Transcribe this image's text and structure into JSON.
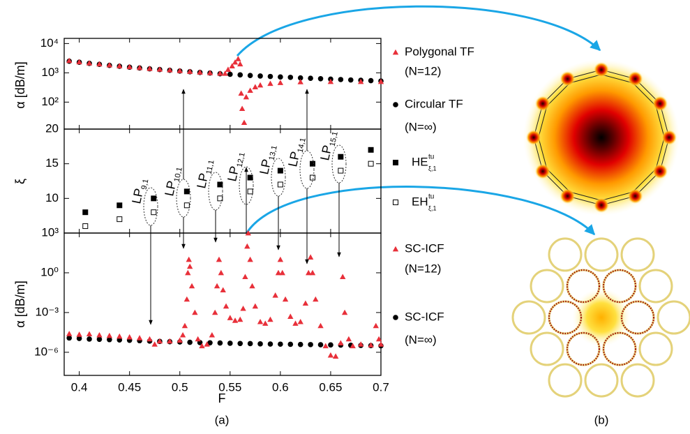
{
  "panel_labels": [
    "(a)",
    "(b)"
  ],
  "chart_data": [
    {
      "type": "scatter",
      "log_y": true,
      "y_label": "α [dB/m]",
      "xlim": [
        0.385,
        0.7
      ],
      "ylim": [
        12,
        15000
      ],
      "yticks": [
        {
          "value": 10000,
          "label": "10⁴"
        },
        {
          "value": 1000,
          "label": "10³"
        },
        {
          "value": 100,
          "label": "10²"
        }
      ],
      "series": [
        {
          "name": "Polygonal TF",
          "note": "(N=12)",
          "color": "#e8303a",
          "marker": "triangle",
          "x": [
            0.39,
            0.4,
            0.41,
            0.42,
            0.43,
            0.44,
            0.45,
            0.46,
            0.47,
            0.48,
            0.49,
            0.5,
            0.51,
            0.52,
            0.53,
            0.54,
            0.545,
            0.548,
            0.552,
            0.555,
            0.558,
            0.56,
            0.561,
            0.562,
            0.564,
            0.566,
            0.57,
            0.575,
            0.58,
            0.59,
            0.6,
            0.62,
            0.65,
            0.68,
            0.7
          ],
          "values": [
            2600,
            2350,
            2150,
            2000,
            1850,
            1720,
            1600,
            1500,
            1400,
            1320,
            1250,
            1180,
            1110,
            1050,
            1000,
            960,
            950,
            1300,
            1700,
            2300,
            3000,
            2000,
            200,
            60,
            20,
            150,
            250,
            330,
            380,
            430,
            460,
            490,
            500,
            500,
            500
          ]
        },
        {
          "name": "Circular TF",
          "note": "(N=∞)",
          "color": "#000000",
          "marker": "circle",
          "x": [
            0.39,
            0.4,
            0.41,
            0.42,
            0.43,
            0.44,
            0.45,
            0.46,
            0.47,
            0.48,
            0.49,
            0.5,
            0.51,
            0.52,
            0.53,
            0.54,
            0.55,
            0.56,
            0.57,
            0.58,
            0.59,
            0.6,
            0.61,
            0.62,
            0.63,
            0.64,
            0.65,
            0.66,
            0.67,
            0.68,
            0.69,
            0.7
          ],
          "values": [
            2500,
            2300,
            2100,
            1950,
            1800,
            1680,
            1560,
            1460,
            1370,
            1290,
            1220,
            1150,
            1090,
            1030,
            980,
            930,
            890,
            850,
            810,
            780,
            750,
            720,
            700,
            670,
            650,
            630,
            610,
            590,
            570,
            555,
            540,
            525
          ]
        }
      ]
    },
    {
      "type": "scatter",
      "log_y": false,
      "y_label": "ξ",
      "xlim": [
        0.385,
        0.7
      ],
      "ylim": [
        5,
        20
      ],
      "yticks": [
        20,
        15,
        10
      ],
      "series": [
        {
          "name": "HE",
          "name_sup": "tu",
          "name_sub": "ξ,1",
          "color": "#000000",
          "marker": "square",
          "x": [
            0.406,
            0.44,
            0.474,
            0.507,
            0.54,
            0.57,
            0.6,
            0.632,
            0.66,
            0.69
          ],
          "values": [
            8,
            9,
            10,
            11,
            12,
            13,
            14,
            15,
            16,
            17
          ]
        },
        {
          "name": "EH",
          "name_sup": "tu",
          "name_sub": "ξ,1",
          "color": "#000000",
          "marker": "square-open",
          "x": [
            0.406,
            0.44,
            0.474,
            0.507,
            0.54,
            0.57,
            0.6,
            0.632,
            0.66,
            0.69
          ],
          "values": [
            6,
            7,
            8,
            9,
            10,
            11,
            12,
            13,
            14,
            15
          ]
        }
      ],
      "annotations": [
        {
          "text": "LP",
          "sub": "9,1"
        },
        {
          "text": "LP",
          "sub": "10,1"
        },
        {
          "text": "LP",
          "sub": "11,1"
        },
        {
          "text": "LP",
          "sub": "12,1"
        },
        {
          "text": "LP",
          "sub": "13,1"
        },
        {
          "text": "LP",
          "sub": "14,1"
        },
        {
          "text": "LP",
          "sub": "15,1"
        }
      ]
    },
    {
      "type": "scatter",
      "log_y": true,
      "y_label": "α [dB/m]",
      "x_label": "F",
      "xlim": [
        0.385,
        0.7
      ],
      "xticks": [
        0.4,
        0.45,
        0.5,
        0.55,
        0.6,
        0.65,
        0.7
      ],
      "ylim": [
        1.8e-08,
        1000
      ],
      "yticks": [
        {
          "value": 1000,
          "label": "10³"
        },
        {
          "value": 1,
          "label": "10⁰"
        },
        {
          "value": 0.001,
          "label": "10⁻³"
        },
        {
          "value": 1e-06,
          "label": "10⁻⁶"
        }
      ],
      "series": [
        {
          "name": "SC-ICF",
          "note": "(N=12)",
          "color": "#e8303a",
          "marker": "triangle",
          "x": [
            0.39,
            0.4,
            0.41,
            0.42,
            0.43,
            0.44,
            0.45,
            0.46,
            0.47,
            0.475,
            0.48,
            0.49,
            0.5,
            0.503,
            0.505,
            0.507,
            0.508,
            0.509,
            0.51,
            0.512,
            0.515,
            0.518,
            0.522,
            0.527,
            0.532,
            0.535,
            0.537,
            0.539,
            0.541,
            0.543,
            0.546,
            0.55,
            0.555,
            0.56,
            0.563,
            0.565,
            0.567,
            0.568,
            0.57,
            0.572,
            0.575,
            0.58,
            0.585,
            0.59,
            0.595,
            0.598,
            0.6,
            0.602,
            0.605,
            0.61,
            0.615,
            0.62,
            0.625,
            0.628,
            0.63,
            0.632,
            0.635,
            0.64,
            0.645,
            0.65,
            0.655,
            0.66,
            0.662,
            0.664,
            0.668,
            0.672,
            0.68,
            0.69,
            0.695,
            0.698,
            0.7
          ],
          "values": [
            2.5e-05,
            2.2e-05,
            2.4e-05,
            2e-05,
            1.8e-05,
            1.6e-05,
            1.4e-05,
            1.2e-05,
            1e-05,
            4e-06,
            7e-06,
            7e-06,
            8e-06,
            2e-05,
            0.0001,
            0.01,
            1,
            10,
            3,
            0.1,
            0.001,
            1e-05,
            3e-06,
            4e-06,
            2e-05,
            0.001,
            0.1,
            10,
            1,
            0.05,
            0.003,
            0.0004,
            0.00025,
            0.0003,
            0.002,
            0.5,
            100,
            1000,
            10,
            0.1,
            0.003,
            0.0002,
            0.00015,
            0.0003,
            0.02,
            1,
            10,
            1,
            0.01,
            0.0005,
            0.00015,
            0.0002,
            0.005,
            1,
            15,
            1,
            0.01,
            0.0001,
            3e-06,
            6e-07,
            5e-07,
            5e-06,
            0.5,
            0.001,
            1e-05,
            3e-06,
            4e-06,
            3.5e-06,
            0.0001,
            1e-05,
            4e-06
          ]
        },
        {
          "name": "SC-ICF",
          "note": "(N=∞)",
          "color": "#000000",
          "marker": "circle",
          "x": [
            0.39,
            0.4,
            0.41,
            0.42,
            0.43,
            0.44,
            0.45,
            0.46,
            0.47,
            0.48,
            0.49,
            0.5,
            0.51,
            0.52,
            0.53,
            0.54,
            0.55,
            0.56,
            0.57,
            0.58,
            0.59,
            0.6,
            0.61,
            0.62,
            0.63,
            0.64,
            0.65,
            0.66,
            0.67,
            0.68,
            0.69,
            0.7
          ],
          "values": [
            1.2e-05,
            1.1e-05,
            1e-05,
            9.5e-06,
            9e-06,
            8.5e-06,
            8e-06,
            7.5e-06,
            7e-06,
            6.6e-06,
            6.3e-06,
            6e-06,
            5.7e-06,
            5.4e-06,
            5.2e-06,
            5e-06,
            4.8e-06,
            4.6e-06,
            4.5e-06,
            4.3e-06,
            4.2e-06,
            4.1e-06,
            4e-06,
            3.9e-06,
            3.8e-06,
            3.7e-06,
            3.6e-06,
            3.5e-06,
            3.4e-06,
            3.3e-06,
            3.2e-06,
            3.1e-06
          ]
        }
      ]
    }
  ]
}
